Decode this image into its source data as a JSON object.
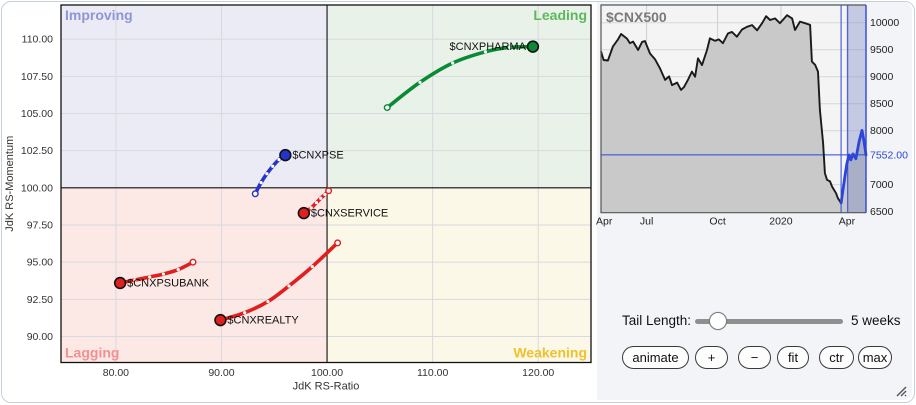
{
  "frame": {
    "border_color": "#c6d0db",
    "panel_bg": "#f2f4f7"
  },
  "chart_data": [
    {
      "type": "scatter",
      "name": "rrg",
      "xlabel": "JdK RS-Ratio",
      "ylabel": "JdK RS-Momentum",
      "xlim": [
        74.8,
        125.0
      ],
      "ylim": [
        88.25,
        112.3
      ],
      "center": {
        "x": 100,
        "y": 100
      },
      "grid": true,
      "xticks": [
        {
          "v": 80,
          "label": "80.00"
        },
        {
          "v": 90,
          "label": "90.00"
        },
        {
          "v": 100,
          "label": "100.00"
        },
        {
          "v": 110,
          "label": "110.00"
        },
        {
          "v": 120,
          "label": "120.00"
        }
      ],
      "yticks": [
        {
          "v": 110,
          "label": "110.00"
        },
        {
          "v": 107.5,
          "label": "107.50"
        },
        {
          "v": 105,
          "label": "105.00"
        },
        {
          "v": 102.5,
          "label": "102.50"
        },
        {
          "v": 100,
          "label": "100.00"
        },
        {
          "v": 97.5,
          "label": "97.50"
        },
        {
          "v": 95,
          "label": "95.00"
        },
        {
          "v": 92.5,
          "label": "92.50"
        },
        {
          "v": 90,
          "label": "90.00"
        }
      ],
      "quadrants": {
        "improving": {
          "label": "Improving",
          "bg": "#eaebf5",
          "text": "#8f96d8"
        },
        "leading": {
          "label": "Leading",
          "bg": "#e9f2e9",
          "text": "#5cb85c"
        },
        "lagging": {
          "label": "Lagging",
          "bg": "#fce8e5",
          "text": "#f49090"
        },
        "weakening": {
          "label": "Weakening",
          "bg": "#fcf8e7",
          "text": "#edc22e"
        }
      },
      "series": [
        {
          "name": "$CNXPHARMA",
          "color": "#0a8a35",
          "label_side": "left",
          "points": [
            [
              105.7,
              105.4
            ],
            [
              108.8,
              107.1
            ],
            [
              111.9,
              108.4
            ],
            [
              115.0,
              109.15
            ],
            [
              117.3,
              109.45
            ],
            [
              119.5,
              109.5
            ]
          ]
        },
        {
          "name": "$CNXPSE",
          "color": "#2633c9",
          "label_side": "right",
          "points": [
            [
              93.2,
              99.6
            ],
            [
              93.75,
              100.35
            ],
            [
              94.3,
              100.95
            ],
            [
              94.85,
              101.45
            ],
            [
              95.45,
              101.9
            ],
            [
              96.05,
              102.2
            ]
          ]
        },
        {
          "name": "$CNXSERVICE",
          "color": "#e01f1f",
          "label_side": "right",
          "points": [
            [
              100.15,
              99.8
            ],
            [
              99.8,
              99.55
            ],
            [
              99.4,
              99.3
            ],
            [
              99.0,
              99.0
            ],
            [
              98.5,
              98.65
            ],
            [
              97.8,
              98.3
            ]
          ]
        },
        {
          "name": "$CNXPSUBANK",
          "color": "#e01f1f",
          "label_side": "right",
          "points": [
            [
              87.3,
              95.0
            ],
            [
              85.9,
              94.5
            ],
            [
              84.5,
              94.2
            ],
            [
              83.2,
              94.0
            ],
            [
              81.8,
              93.8
            ],
            [
              80.4,
              93.6
            ]
          ]
        },
        {
          "name": "$CNXREALTY",
          "color": "#e01f1f",
          "label_side": "right",
          "points": [
            [
              101.0,
              96.3
            ],
            [
              98.6,
              94.7
            ],
            [
              96.4,
              93.4
            ],
            [
              94.4,
              92.35
            ],
            [
              92.2,
              91.6
            ],
            [
              89.9,
              91.1
            ]
          ]
        }
      ]
    },
    {
      "type": "area",
      "name": "mini",
      "title": "$CNX500",
      "title_color": "#7a7a7a",
      "ylim": [
        6481,
        10328
      ],
      "yticks": [
        {
          "v": 10000,
          "label": "10000"
        },
        {
          "v": 9500,
          "label": "9500"
        },
        {
          "v": 9000,
          "label": "9000"
        },
        {
          "v": 8500,
          "label": "8500"
        },
        {
          "v": 8000,
          "label": "8000"
        },
        {
          "v": 7000,
          "label": "7000"
        },
        {
          "v": 6500,
          "label": "6500"
        }
      ],
      "current_price_label": "7552.00",
      "current_price": 7552,
      "xticks": [
        {
          "t": 0.012,
          "label": "Apr"
        },
        {
          "t": 0.172,
          "label": "Jul"
        },
        {
          "t": 0.44,
          "label": "Oct"
        },
        {
          "t": 0.679,
          "label": "2020"
        },
        {
          "t": 0.928,
          "label": "Apr"
        }
      ],
      "window_lines_t": [
        0.906,
        0.931
      ],
      "colors": {
        "bg": "#f4f4f4",
        "area": "#c9c9c9",
        "line": "#1a1a1a",
        "window_fill": "rgba(120,135,200,0.38)",
        "blue": "#2d46d8",
        "border": "#555555"
      },
      "points": [
        [
          0.0,
          9470
        ],
        [
          0.01,
          9310
        ],
        [
          0.026,
          9300
        ],
        [
          0.045,
          9560
        ],
        [
          0.064,
          9690
        ],
        [
          0.076,
          9790
        ],
        [
          0.098,
          9705
        ],
        [
          0.109,
          9620
        ],
        [
          0.121,
          9650
        ],
        [
          0.14,
          9495
        ],
        [
          0.155,
          9645
        ],
        [
          0.166,
          9660
        ],
        [
          0.185,
          9430
        ],
        [
          0.204,
          9320
        ],
        [
          0.223,
          9150
        ],
        [
          0.242,
          8940
        ],
        [
          0.257,
          9005
        ],
        [
          0.268,
          8845
        ],
        [
          0.287,
          8890
        ],
        [
          0.302,
          8755
        ],
        [
          0.313,
          8805
        ],
        [
          0.328,
          8940
        ],
        [
          0.343,
          9095
        ],
        [
          0.355,
          9000
        ],
        [
          0.366,
          9340
        ],
        [
          0.381,
          9215
        ],
        [
          0.4,
          9495
        ],
        [
          0.411,
          9710
        ],
        [
          0.43,
          9665
        ],
        [
          0.445,
          9690
        ],
        [
          0.46,
          9620
        ],
        [
          0.479,
          9800
        ],
        [
          0.494,
          9830
        ],
        [
          0.513,
          9740
        ],
        [
          0.532,
          9875
        ],
        [
          0.551,
          9925
        ],
        [
          0.57,
          9955
        ],
        [
          0.589,
          9860
        ],
        [
          0.608,
          9990
        ],
        [
          0.623,
          10120
        ],
        [
          0.638,
          10050
        ],
        [
          0.657,
          10080
        ],
        [
          0.675,
          9990
        ],
        [
          0.702,
          10140
        ],
        [
          0.721,
          10080
        ],
        [
          0.732,
          9865
        ],
        [
          0.751,
          10020
        ],
        [
          0.77,
          9990
        ],
        [
          0.789,
          9960
        ],
        [
          0.796,
          9280
        ],
        [
          0.808,
          9220
        ],
        [
          0.819,
          9095
        ],
        [
          0.826,
          8385
        ],
        [
          0.838,
          7770
        ],
        [
          0.845,
          7215
        ],
        [
          0.853,
          7090
        ],
        [
          0.864,
          7060
        ],
        [
          0.872,
          6965
        ],
        [
          0.887,
          6840
        ],
        [
          0.894,
          6750
        ],
        [
          0.906,
          6660
        ]
      ],
      "blue_points": [
        [
          0.906,
          6660
        ],
        [
          0.921,
          7180
        ],
        [
          0.928,
          7390
        ],
        [
          0.936,
          7550
        ],
        [
          0.943,
          7460
        ],
        [
          0.951,
          7570
        ],
        [
          0.962,
          7480
        ],
        [
          0.974,
          7800
        ],
        [
          0.985,
          8005
        ],
        [
          0.992,
          7820
        ],
        [
          1.0,
          7552
        ]
      ]
    }
  ],
  "controls": {
    "tail_length_label": "Tail Length:",
    "tail_length_value": "5 weeks",
    "slider_position": 0.16,
    "buttons": [
      {
        "label": "animate"
      },
      {
        "label": "+"
      },
      {
        "label": "−"
      },
      {
        "label": "fit"
      },
      {
        "label": "ctr"
      },
      {
        "label": "max"
      }
    ]
  }
}
